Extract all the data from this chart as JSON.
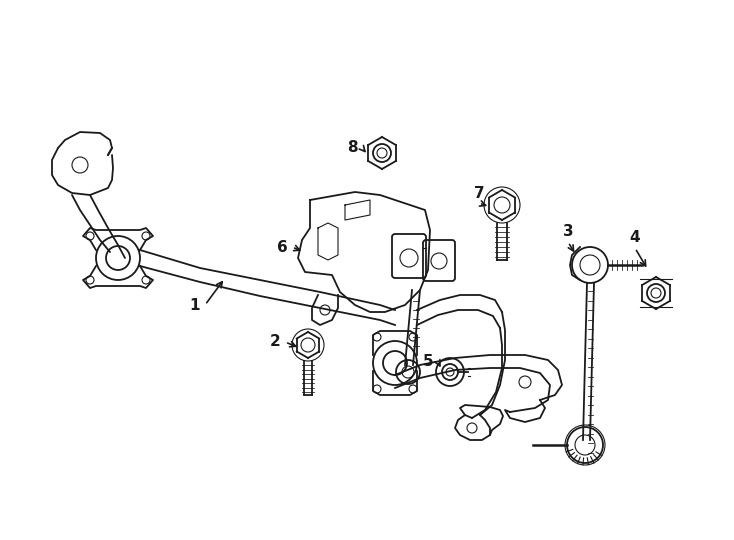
{
  "background_color": "#ffffff",
  "line_color": "#1a1a1a",
  "figsize": [
    7.34,
    5.4
  ],
  "dpi": 100
}
